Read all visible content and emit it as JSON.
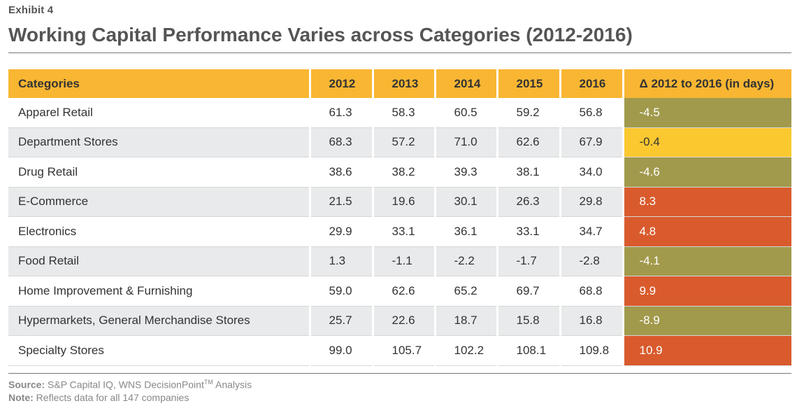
{
  "header": {
    "exhibit": "Exhibit 4",
    "title": "Working Capital Performance Varies across Categories (2012-2016)"
  },
  "chart_data": {
    "type": "table",
    "columns": [
      "Categories",
      "2012",
      "2013",
      "2014",
      "2015",
      "2016",
      "Δ 2012 to 2016 (in days)"
    ],
    "rows": [
      {
        "category": "Apparel Retail",
        "values": [
          "61.3",
          "58.3",
          "60.5",
          "59.2",
          "56.8"
        ],
        "delta": "-4.5",
        "delta_class": "neg"
      },
      {
        "category": "Department Stores",
        "values": [
          "68.3",
          "57.2",
          "71.0",
          "62.6",
          "67.9"
        ],
        "delta": "-0.4",
        "delta_class": "neutral"
      },
      {
        "category": "Drug Retail",
        "values": [
          "38.6",
          "38.2",
          "39.3",
          "38.1",
          "34.0"
        ],
        "delta": "-4.6",
        "delta_class": "neg"
      },
      {
        "category": "E-Commerce",
        "values": [
          "21.5",
          "19.6",
          "30.1",
          "26.3",
          "29.8"
        ],
        "delta": "8.3",
        "delta_class": "pos"
      },
      {
        "category": "Electronics",
        "values": [
          "29.9",
          "33.1",
          "36.1",
          "33.1",
          "34.7"
        ],
        "delta": "4.8",
        "delta_class": "pos"
      },
      {
        "category": "Food Retail",
        "values": [
          "1.3",
          "-1.1",
          "-2.2",
          "-1.7",
          "-2.8"
        ],
        "delta": "-4.1",
        "delta_class": "neg"
      },
      {
        "category": "Home Improvement & Furnishing",
        "values": [
          "59.0",
          "62.6",
          "65.2",
          "69.7",
          "68.8"
        ],
        "delta": "9.9",
        "delta_class": "pos"
      },
      {
        "category": "Hypermarkets, General Merchandise Stores",
        "values": [
          "25.7",
          "22.6",
          "18.7",
          "15.8",
          "16.8"
        ],
        "delta": "-8.9",
        "delta_class": "neg"
      },
      {
        "category": "Specialty Stores",
        "values": [
          "99.0",
          "105.7",
          "102.2",
          "108.1",
          "109.8"
        ],
        "delta": "10.9",
        "delta_class": "pos"
      }
    ],
    "colors": {
      "header": "#f8b632",
      "negative": "#a19a4c",
      "neutral": "#fbc830",
      "positive": "#d95b2d"
    }
  },
  "footer": {
    "source_label": "Source:",
    "source_text": "S&P Capital IQ, WNS DecisionPoint",
    "source_tm": "TM",
    "source_tail": " Analysis",
    "note_label": "Note:",
    "note_text": "Reflects data for all 147 companies"
  }
}
